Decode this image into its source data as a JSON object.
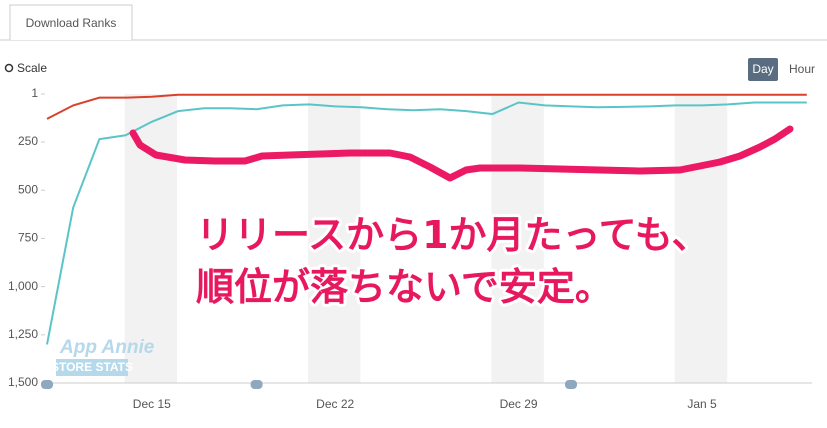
{
  "tab": "Download Ranks",
  "scale_label": "Scale",
  "buttons": [
    "Day",
    "Hour"
  ],
  "watermark": [
    "App Annie",
    "STORE STATS"
  ],
  "annotation": [
    "リリースから1か月たっても、",
    "順位が落ちないで安定。"
  ],
  "chart_data": {
    "type": "line",
    "categories": [
      null,
      null,
      null,
      null,
      "Dec 15",
      null,
      null,
      null,
      null,
      null,
      null,
      "Dec 22",
      null,
      null,
      null,
      null,
      null,
      null,
      "Dec 29",
      null,
      null,
      null,
      null,
      null,
      null,
      "Jan 5",
      null,
      null,
      null,
      null
    ],
    "series": [
      {
        "color": "#d9412b",
        "values": [
          130,
          60,
          20,
          20,
          15,
          5,
          5,
          5,
          5,
          5,
          5,
          5,
          5,
          5,
          5,
          5,
          5,
          5,
          5,
          5,
          5,
          5,
          5,
          5,
          5,
          5,
          5,
          5,
          5,
          5
        ]
      },
      {
        "color": "#5bc4c8",
        "values": [
          1300,
          590,
          235,
          215,
          145,
          90,
          75,
          75,
          80,
          60,
          55,
          65,
          70,
          80,
          85,
          80,
          90,
          105,
          45,
          60,
          65,
          70,
          68,
          65,
          60,
          60,
          55,
          45,
          45,
          45
        ]
      }
    ],
    "ylim": [
      1,
      1500
    ],
    "y_inverted": true,
    "yticks": [
      1,
      250,
      500,
      750,
      {
        "value": 1000,
        "label": "1,000"
      },
      {
        "value": 1250,
        "label": "1,250"
      },
      {
        "value": 1500,
        "label": "1,500"
      }
    ]
  }
}
